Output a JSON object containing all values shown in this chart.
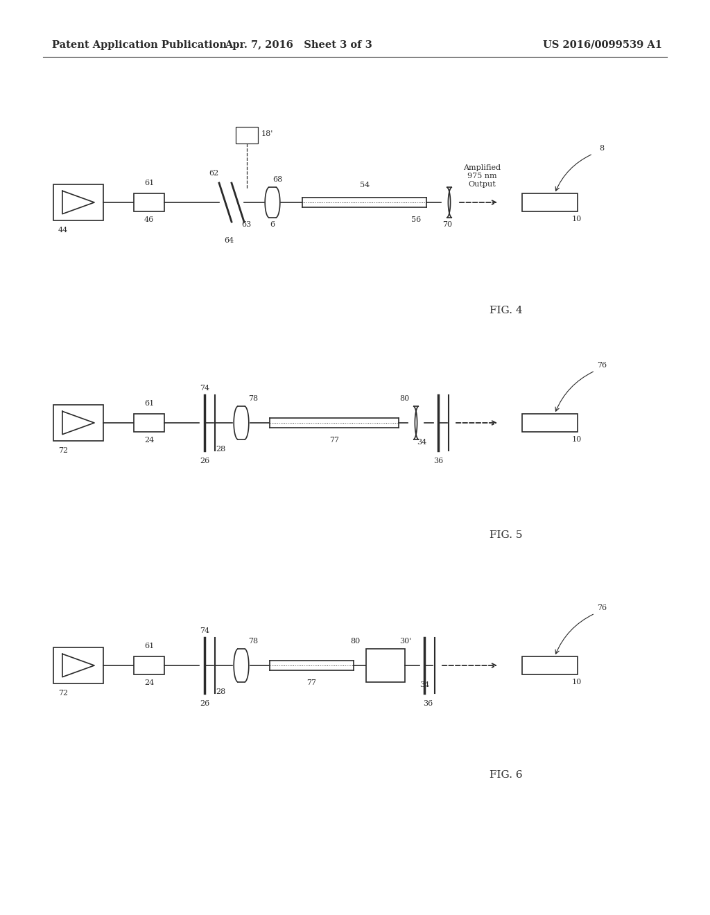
{
  "bg_color": "#ffffff",
  "line_color": "#2a2a2a",
  "header": {
    "left": "Patent Application Publication",
    "center": "Apr. 7, 2016   Sheet 3 of 3",
    "right": "US 2016/0099539 A1",
    "fontsize": 10.5
  }
}
